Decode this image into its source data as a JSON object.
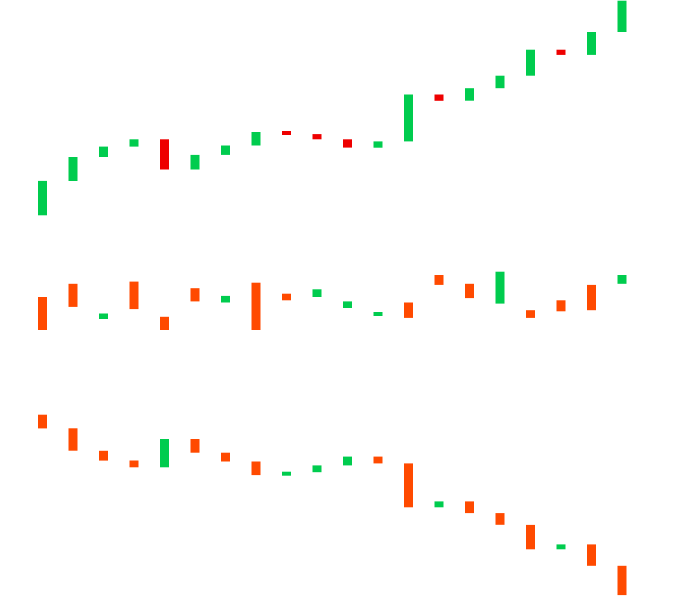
{
  "chart_data": [
    {
      "type": "candlestick",
      "title": "",
      "xlabel": "",
      "ylabel": "",
      "grid": false,
      "colors": {
        "up": "#00cc4e",
        "down": "#ee0000"
      },
      "ylim": [
        0,
        215
      ],
      "bars": [
        {
          "open": 16,
          "close": 49
        },
        {
          "open": 49,
          "close": 72
        },
        {
          "open": 72,
          "close": 82
        },
        {
          "open": 82,
          "close": 89
        },
        {
          "open": 89,
          "close": 60
        },
        {
          "open": 60,
          "close": 74
        },
        {
          "open": 74,
          "close": 83
        },
        {
          "open": 83,
          "close": 96
        },
        {
          "open": 96,
          "close": 94
        },
        {
          "open": 94,
          "close": 89
        },
        {
          "open": 89,
          "close": 81
        },
        {
          "open": 81,
          "close": 87
        },
        {
          "open": 87,
          "close": 132
        },
        {
          "open": 132,
          "close": 126
        },
        {
          "open": 126,
          "close": 138
        },
        {
          "open": 138,
          "close": 150
        },
        {
          "open": 150,
          "close": 175
        },
        {
          "open": 175,
          "close": 170
        },
        {
          "open": 170,
          "close": 192
        },
        {
          "open": 192,
          "close": 222
        }
      ]
    },
    {
      "type": "candlestick",
      "title": "",
      "xlabel": "",
      "ylabel": "",
      "grid": false,
      "colors": {
        "up": "#00cc4e",
        "down": "#ff4a00"
      },
      "ylim": [
        0,
        60
      ],
      "bars": [
        {
          "open": 30,
          "close": 0
        },
        {
          "open": 42,
          "close": 21
        },
        {
          "open": 10,
          "close": 15
        },
        {
          "open": 44,
          "close": 19
        },
        {
          "open": 12,
          "close": 0
        },
        {
          "open": 38,
          "close": 26
        },
        {
          "open": 25,
          "close": 31
        },
        {
          "open": 43,
          "close": 0
        },
        {
          "open": 33,
          "close": 27
        },
        {
          "open": 30,
          "close": 37
        },
        {
          "open": 20,
          "close": 26
        },
        {
          "open": 13,
          "close": 16
        },
        {
          "open": 25,
          "close": 11
        },
        {
          "open": 50,
          "close": 41
        },
        {
          "open": 42,
          "close": 29
        },
        {
          "open": 24,
          "close": 53
        },
        {
          "open": 18,
          "close": 11
        },
        {
          "open": 27,
          "close": 17
        },
        {
          "open": 41,
          "close": 18
        },
        {
          "open": 42,
          "close": 50
        }
      ]
    },
    {
      "type": "candlestick",
      "title": "",
      "xlabel": "",
      "ylabel": "",
      "grid": false,
      "colors": {
        "up": "#00cc4e",
        "down": "#ff4a00"
      },
      "ylim": [
        0,
        200
      ],
      "bars": [
        {
          "open": 187,
          "close": 173
        },
        {
          "open": 173,
          "close": 150
        },
        {
          "open": 150,
          "close": 140
        },
        {
          "open": 140,
          "close": 133
        },
        {
          "open": 133,
          "close": 162
        },
        {
          "open": 162,
          "close": 148
        },
        {
          "open": 148,
          "close": 139
        },
        {
          "open": 139,
          "close": 125
        },
        {
          "open": 125,
          "close": 128
        },
        {
          "open": 128,
          "close": 135
        },
        {
          "open": 135,
          "close": 144
        },
        {
          "open": 144,
          "close": 137
        },
        {
          "open": 137,
          "close": 92
        },
        {
          "open": 92,
          "close": 98
        },
        {
          "open": 98,
          "close": 86
        },
        {
          "open": 86,
          "close": 74
        },
        {
          "open": 74,
          "close": 49
        },
        {
          "open": 49,
          "close": 54
        },
        {
          "open": 54,
          "close": 32
        },
        {
          "open": 32,
          "close": 2
        }
      ]
    }
  ]
}
